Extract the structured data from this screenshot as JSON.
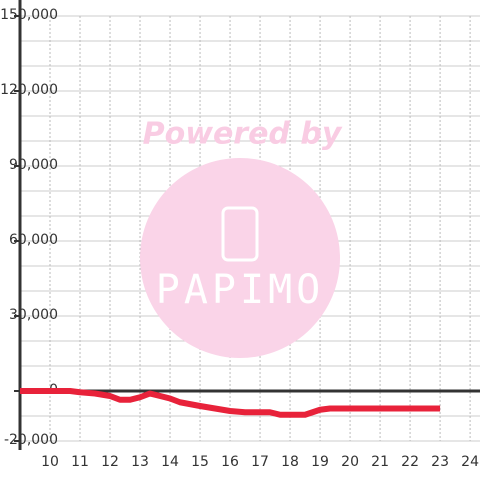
{
  "chart_data": {
    "type": "line",
    "watermark": {
      "line1": "Powered by",
      "line2": "PAPIMO"
    },
    "x": [
      9,
      10,
      10.67,
      11,
      11.5,
      12,
      12.33,
      12.67,
      13,
      13.33,
      13.67,
      14,
      14.33,
      15,
      15.5,
      16,
      16.5,
      17,
      17.33,
      17.67,
      18,
      18.5,
      19,
      19.33,
      20,
      21,
      22,
      23
    ],
    "values": [
      0,
      0,
      0,
      -500,
      -1000,
      -2000,
      -3500,
      -3500,
      -2500,
      -1000,
      -2000,
      -3000,
      -4500,
      -6000,
      -7000,
      -8000,
      -8500,
      -8500,
      -8500,
      -9500,
      -9500,
      -9500,
      -7500,
      -7000,
      -7000,
      -7000,
      -7000,
      -7000
    ],
    "color": "#e8223a",
    "xlim": [
      9,
      24.33
    ],
    "xticks": [
      10,
      11,
      12,
      13,
      14,
      15,
      16,
      17,
      18,
      19,
      20,
      21,
      22,
      23,
      24
    ],
    "ylim": [
      -20000,
      150000
    ],
    "yticks": [
      {
        "value": 150000,
        "label": "150,000"
      },
      {
        "value": 120000,
        "label": "120,000"
      },
      {
        "value": 90000,
        "label": "90,000"
      },
      {
        "value": 60000,
        "label": "60,000"
      },
      {
        "value": 30000,
        "label": "30,000"
      },
      0,
      {
        "value": -20000,
        "label": "-20,000"
      }
    ],
    "yminorticks": [
      140000,
      130000,
      110000,
      100000,
      80000,
      70000,
      50000,
      40000,
      20000,
      10000,
      -10000
    ],
    "grid": true
  }
}
